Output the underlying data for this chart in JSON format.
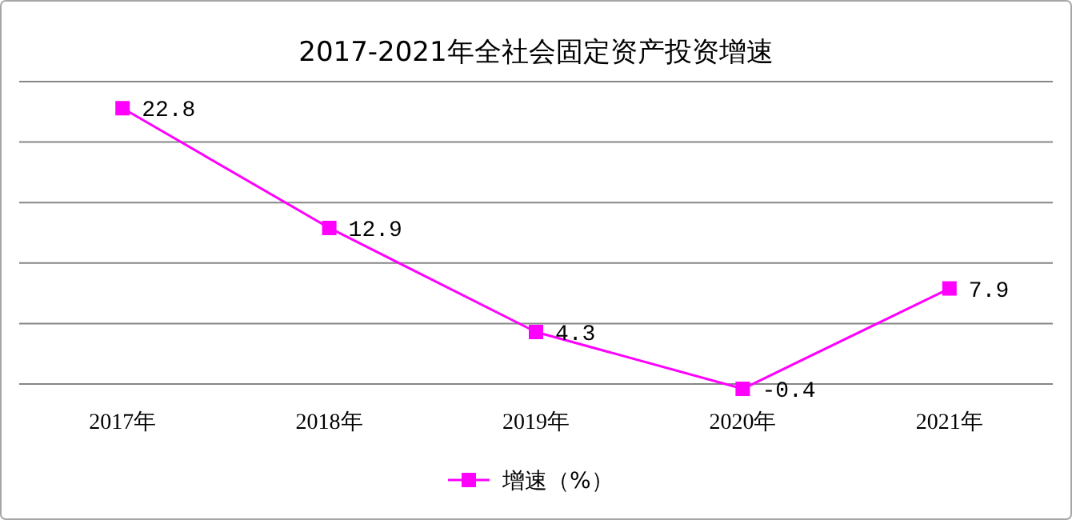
{
  "chart_data": {
    "type": "line",
    "title": "2017-2021年全社会固定资产投资增速",
    "categories": [
      "2017年",
      "2018年",
      "2019年",
      "2020年",
      "2021年"
    ],
    "series": [
      {
        "name": "增速（%）",
        "color": "#ff00ff",
        "values": [
          22.8,
          12.9,
          4.3,
          -0.4,
          7.9
        ]
      }
    ],
    "yticks": [
      {
        "value": 0,
        "label": null
      },
      {
        "value": 5,
        "label": null
      },
      {
        "value": 10,
        "label": null
      },
      {
        "value": 15,
        "label": null
      },
      {
        "value": 20,
        "label": null
      },
      {
        "value": 25,
        "label": null
      }
    ],
    "tick_labels": "x",
    "grid": "y",
    "legend": "bottom",
    "marker": "square",
    "line_style": "solid",
    "data_labels": true
  }
}
